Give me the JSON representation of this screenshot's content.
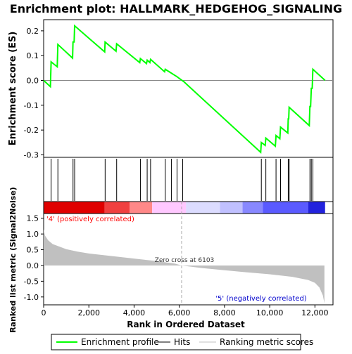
{
  "chart_data": {
    "type": "line",
    "title": "Enrichment plot: HALLMARK_HEDGEHOG_SIGNALING",
    "es_panel": {
      "ylabel": "Enrichment score (ES)",
      "ylim": [
        -0.31,
        0.245
      ],
      "yticks": [
        0.2,
        0.1,
        0.0,
        -0.1,
        -0.2,
        -0.3
      ],
      "ytick_labels": [
        "0.2",
        "0.1",
        "0.0",
        "-0.1",
        "-0.2",
        "-0.3"
      ],
      "series_color": "#00ff00",
      "profile": [
        [
          0,
          0.0
        ],
        [
          300,
          -0.025
        ],
        [
          330,
          0.075
        ],
        [
          600,
          0.055
        ],
        [
          630,
          0.145
        ],
        [
          1280,
          0.09
        ],
        [
          1300,
          0.155
        ],
        [
          1350,
          0.155
        ],
        [
          1370,
          0.22
        ],
        [
          2700,
          0.115
        ],
        [
          2720,
          0.155
        ],
        [
          3200,
          0.118
        ],
        [
          3230,
          0.148
        ],
        [
          4250,
          0.072
        ],
        [
          4280,
          0.088
        ],
        [
          4550,
          0.068
        ],
        [
          4580,
          0.082
        ],
        [
          4700,
          0.072
        ],
        [
          4730,
          0.085
        ],
        [
          5350,
          0.035
        ],
        [
          5380,
          0.045
        ],
        [
          5900,
          0.015
        ],
        [
          6200,
          -0.005
        ],
        [
          9600,
          -0.29
        ],
        [
          9630,
          -0.25
        ],
        [
          9800,
          -0.262
        ],
        [
          9830,
          -0.232
        ],
        [
          10250,
          -0.265
        ],
        [
          10280,
          -0.222
        ],
        [
          10450,
          -0.235
        ],
        [
          10480,
          -0.188
        ],
        [
          10800,
          -0.212
        ],
        [
          10820,
          -0.155
        ],
        [
          10840,
          -0.155
        ],
        [
          10860,
          -0.108
        ],
        [
          11750,
          -0.182
        ],
        [
          11780,
          -0.105
        ],
        [
          11810,
          -0.105
        ],
        [
          11840,
          -0.032
        ],
        [
          11880,
          -0.032
        ],
        [
          11910,
          0.045
        ],
        [
          12450,
          0.0
        ]
      ]
    },
    "hits": [
      330,
      630,
      1300,
      1370,
      2720,
      3230,
      4280,
      4580,
      4730,
      5380,
      5650,
      5900,
      6150,
      9630,
      9830,
      10280,
      10480,
      10820,
      10860,
      11780,
      11840,
      11910
    ],
    "heatmap_bands": [
      [
        "#e00000",
        0,
        2700
      ],
      [
        "#f04040",
        2700,
        3800
      ],
      [
        "#ff8888",
        3800,
        4800
      ],
      [
        "#ffc8ff",
        4800,
        6300
      ],
      [
        "#dcdcff",
        6300,
        7800
      ],
      [
        "#c0c0ff",
        7800,
        8800
      ],
      [
        "#8888ff",
        8800,
        9700
      ],
      [
        "#5a5aff",
        9700,
        11700
      ],
      [
        "#2222dd",
        11700,
        12450
      ]
    ],
    "rank_panel": {
      "ylabel": "Ranked list metric (Signal2Noise)",
      "xlabel": "Rank in Ordered Dataset",
      "ylim": [
        -1.25,
        1.65
      ],
      "yticks": [
        1.5,
        1.0,
        0.5,
        0.0,
        -0.5,
        -1.0
      ],
      "ytick_labels": [
        "1.5",
        "1.0",
        "0.5",
        "0.0",
        "-0.5",
        "-1.0"
      ],
      "fill_color": "#c0c0c0",
      "metric": [
        [
          0,
          1.15
        ],
        [
          60,
          0.95
        ],
        [
          200,
          0.8
        ],
        [
          400,
          0.68
        ],
        [
          700,
          0.6
        ],
        [
          1000,
          0.52
        ],
        [
          1500,
          0.44
        ],
        [
          2000,
          0.38
        ],
        [
          3000,
          0.3
        ],
        [
          4000,
          0.22
        ],
        [
          5000,
          0.14
        ],
        [
          5800,
          0.06
        ],
        [
          6103,
          0.0
        ],
        [
          7000,
          -0.08
        ],
        [
          8000,
          -0.15
        ],
        [
          9000,
          -0.22
        ],
        [
          10000,
          -0.28
        ],
        [
          11000,
          -0.36
        ],
        [
          11700,
          -0.46
        ],
        [
          12000,
          -0.55
        ],
        [
          12200,
          -0.7
        ],
        [
          12350,
          -0.95
        ],
        [
          12420,
          -1.2
        ]
      ],
      "zero_cross_label": "Zero cross at 6103",
      "zero_cross_x": 6103,
      "pos_label": "'4' (positively correlated)",
      "pos_color": "#ff0000",
      "neg_label": "'5' (negatively correlated)",
      "neg_color": "#0000cc"
    },
    "xlim": [
      0,
      12800
    ],
    "xticks": [
      0,
      2000,
      4000,
      6000,
      8000,
      10000,
      12000
    ],
    "xtick_labels": [
      "0",
      "2,000",
      "4,000",
      "6,000",
      "8,000",
      "10,000",
      "12,000"
    ],
    "dataset_length": 12450,
    "legend": {
      "placement": "bottom",
      "entries": [
        {
          "label": "Enrichment profile",
          "color": "#00ff00"
        },
        {
          "label": "Hits",
          "color": "#000000"
        },
        {
          "label": "Ranking metric scores",
          "color": "#c0c0c0"
        }
      ]
    }
  }
}
